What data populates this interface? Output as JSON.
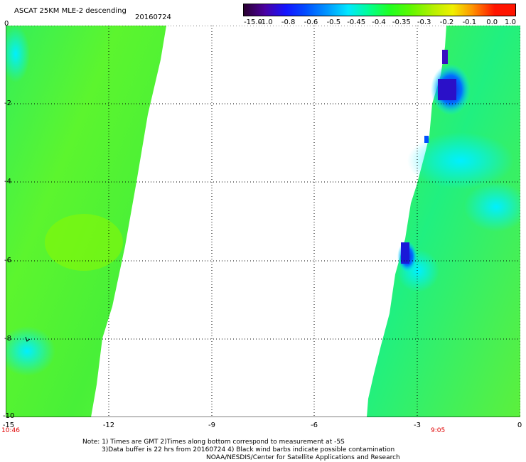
{
  "header": {
    "title": "ASCAT 25KM MLE-2 descending",
    "date": "20160724"
  },
  "colorbar": {
    "labels": [
      "-15.0",
      "-1.0",
      "-0.8",
      "-0.6",
      "-0.5",
      "-0.45",
      "-0.4",
      "-0.35",
      "-0.3",
      "-0.2",
      "-0.1",
      "0.0",
      "1.0"
    ],
    "colors": [
      "#2a0030",
      "#4b00a0",
      "#1414ff",
      "#0050ff",
      "#0098ff",
      "#00e8ff",
      "#00ff90",
      "#20ff20",
      "#60f800",
      "#b0f000",
      "#f0f000",
      "#ff8c00",
      "#ff1400"
    ]
  },
  "axes": {
    "y_labels": [
      "0",
      "-2",
      "-4",
      "-6",
      "-8",
      "-10"
    ],
    "x_labels": [
      "-15",
      "-12",
      "-9",
      "-6",
      "-3",
      "0"
    ]
  },
  "times": {
    "left": "10:46",
    "right": "9:05"
  },
  "notes": {
    "line1": "Note: 1) Times are GMT 2)Times along bottom correspond to measurement at -5S",
    "line2": "3)Data buffer is 22 hrs from 20160724 4) Black wind barbs indicate possible contamination",
    "line3": "NOAA/NESDIS/Center for Satellite Applications and Research"
  },
  "swaths": {
    "west_color": "#3cf03c",
    "east_color": "#3cf06a",
    "low_value_color": "#1a1ad8",
    "cyan_color": "#00f0ff"
  }
}
